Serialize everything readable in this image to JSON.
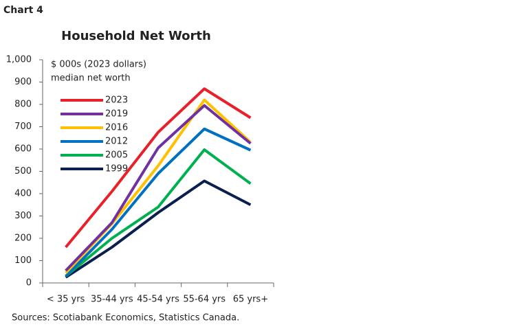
{
  "chart_label": "Chart 4",
  "source": "Sources: Scotiabank Economics, Statistics Canada.",
  "chart_data": {
    "type": "line",
    "title": "Household Net Worth",
    "annotations": [
      "$ 000s (2023 dollars)",
      "median net worth"
    ],
    "categories": [
      "< 35 yrs",
      "35-44 yrs",
      "45-54 yrs",
      "55-64 yrs",
      "65 yrs+"
    ],
    "series": [
      {
        "name": "2023",
        "color": "#e8202a",
        "values": [
          160,
          410,
          675,
          870,
          740
        ]
      },
      {
        "name": "2019",
        "color": "#7030a0",
        "values": [
          55,
          270,
          605,
          795,
          625
        ]
      },
      {
        "name": "2016",
        "color": "#ffc000",
        "values": [
          45,
          265,
          525,
          820,
          630
        ]
      },
      {
        "name": "2012",
        "color": "#0070c0",
        "values": [
          30,
          240,
          490,
          690,
          595
        ]
      },
      {
        "name": "2005",
        "color": "#00b050",
        "values": [
          30,
          200,
          340,
          597,
          445
        ]
      },
      {
        "name": "1999",
        "color": "#0b1f4f",
        "values": [
          25,
          160,
          315,
          457,
          350
        ]
      }
    ],
    "ylim": [
      0,
      1000
    ],
    "yticks": [
      0,
      100,
      200,
      300,
      400,
      500,
      600,
      700,
      800,
      900,
      {
        "value": 1000,
        "label": "1,000"
      }
    ],
    "legend": "upper left",
    "grid": false
  }
}
